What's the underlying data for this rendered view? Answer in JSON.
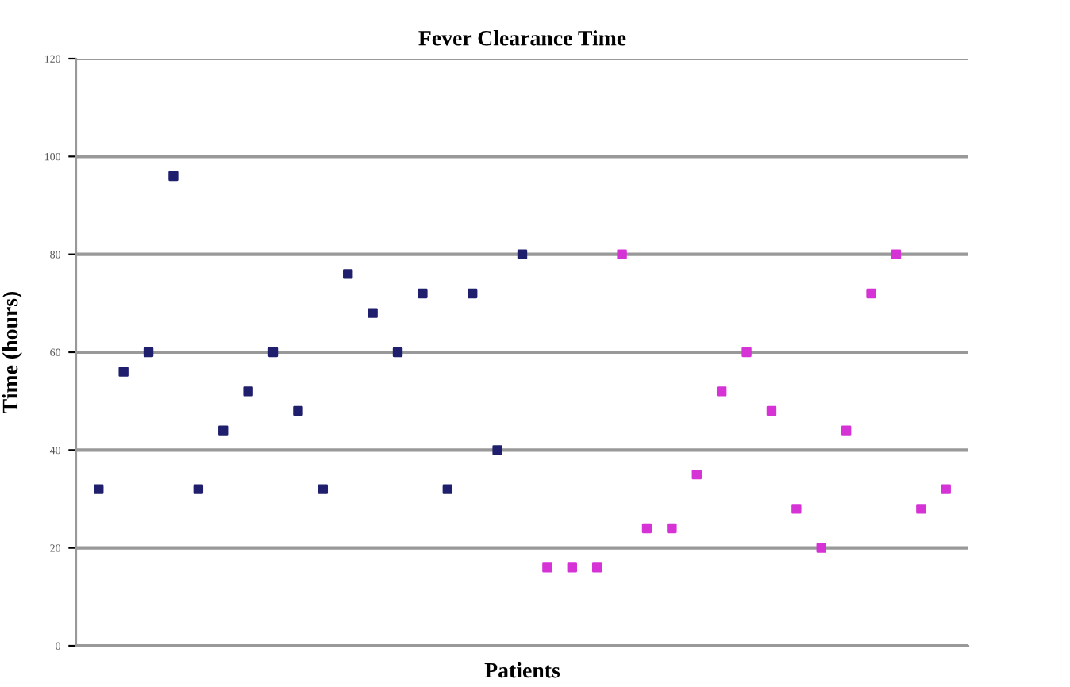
{
  "chart_data": {
    "type": "scatter",
    "title": "Fever Clearance Time",
    "xlabel": "Patients",
    "ylabel": "Time (hours)",
    "categories": [
      null,
      null,
      null,
      null,
      null,
      null,
      null,
      null,
      null,
      null,
      null,
      null,
      null,
      null,
      null,
      null,
      null,
      null,
      null,
      null,
      null,
      null,
      null,
      null,
      null,
      null,
      null,
      null,
      null,
      null,
      null,
      null,
      null,
      null,
      null
    ],
    "series": [
      {
        "color": "#1f1f6e",
        "values": [
          32,
          56,
          60,
          96,
          32,
          44,
          52,
          60,
          48,
          32,
          76,
          68,
          60,
          72,
          32,
          72,
          40,
          80,
          null,
          null,
          null,
          null,
          null,
          null,
          null,
          null,
          null,
          null,
          null,
          null,
          null,
          null,
          null,
          null,
          null
        ]
      },
      {
        "color": "#d633d6",
        "values": [
          null,
          null,
          null,
          null,
          null,
          null,
          null,
          null,
          null,
          null,
          null,
          null,
          null,
          null,
          null,
          null,
          null,
          null,
          16,
          16,
          16,
          80,
          24,
          24,
          35,
          52,
          60,
          48,
          28,
          20,
          44,
          72,
          80,
          28,
          32
        ]
      }
    ],
    "ylim": [
      0,
      120
    ],
    "yticks": [
      0,
      20,
      40,
      60,
      80,
      100,
      120
    ],
    "grid": "y",
    "marker": "square"
  }
}
